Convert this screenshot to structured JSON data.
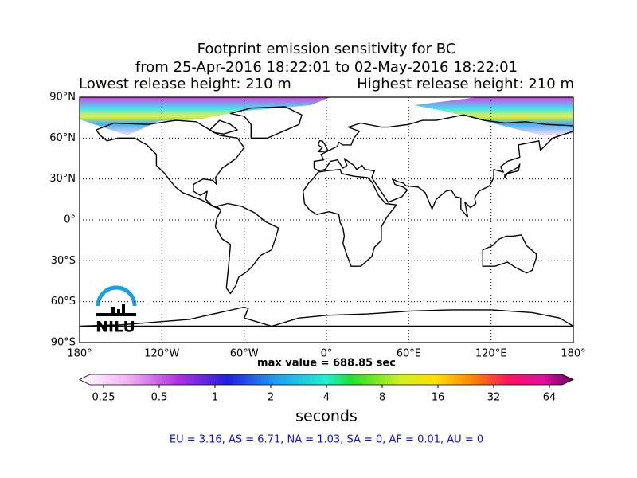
{
  "title": [
    "Footprint emission sensitivity for BC",
    "from 25-Apr-2016 18:22:01 to 02-May-2016 18:22:01"
  ],
  "release": {
    "lowest": "Lowest release height: 210 m",
    "highest": "Highest release height: 210 m"
  },
  "map": {
    "xlim": [
      -180,
      180
    ],
    "ylim": [
      -90,
      90
    ],
    "xticks": [
      {
        "value": -180,
        "label": "180°"
      },
      {
        "value": -120,
        "label": "120°W"
      },
      {
        "value": -60,
        "label": "60°W"
      },
      {
        "value": 0,
        "label": "0°"
      },
      {
        "value": 60,
        "label": "60°E"
      },
      {
        "value": 120,
        "label": "120°E"
      },
      {
        "value": 180,
        "label": "180°"
      }
    ],
    "yticks": [
      {
        "value": 90,
        "label": "90°N"
      },
      {
        "value": 60,
        "label": "60°N"
      },
      {
        "value": 30,
        "label": "30°N"
      },
      {
        "value": 0,
        "label": "0°"
      },
      {
        "value": -30,
        "label": "30°S"
      },
      {
        "value": -60,
        "label": "60°S"
      },
      {
        "value": -90,
        "label": "90°S"
      }
    ]
  },
  "max_value": "max value = 688.85 sec",
  "colorbar": {
    "log": true,
    "ticks": [
      0.25,
      0.5,
      1,
      2,
      4,
      8,
      16,
      32,
      64
    ],
    "label": "seconds"
  },
  "footer": "EU = 3.16,  AS = 6.71,  NA = 1.03,  SA = 0,  AF = 0.01,  AU = 0",
  "logo": "NILU"
}
